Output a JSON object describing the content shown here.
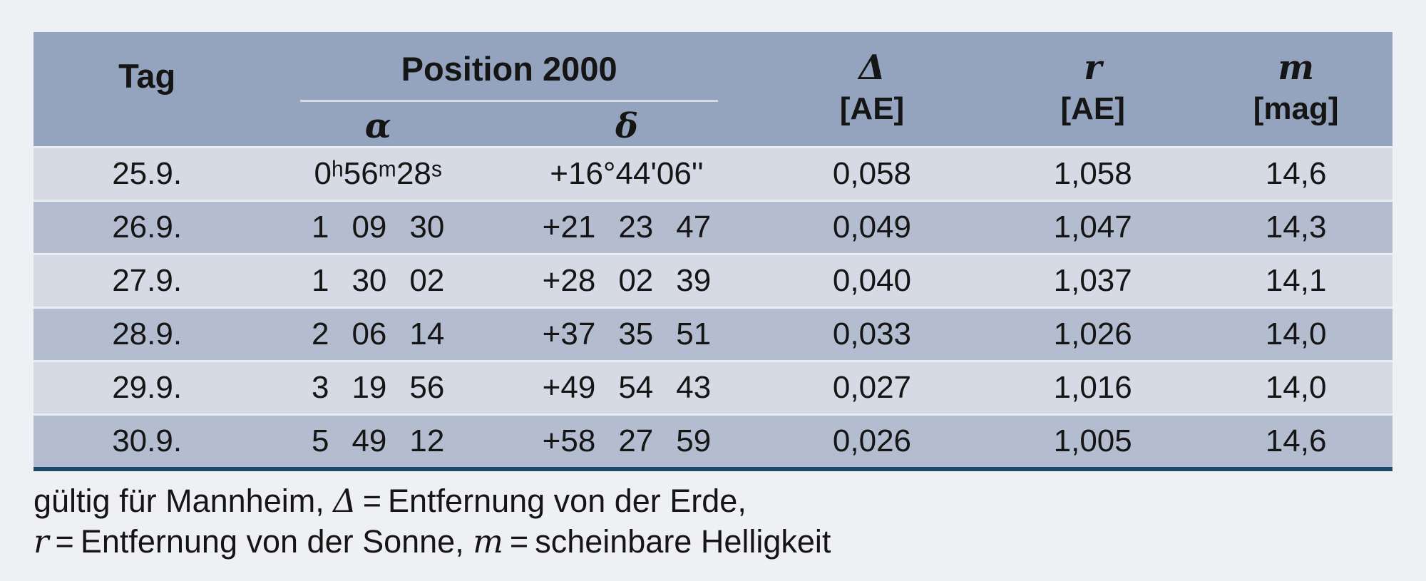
{
  "colors": {
    "page_background": "#eef0f4",
    "header_bg": "#95a4be",
    "row_light": "#d6dae5",
    "row_medium": "#b3bdcf",
    "row_separator": "#e9ecf2",
    "header_underline": "#d5dae3",
    "bottom_rule": "#1b4a69",
    "text": "#151515"
  },
  "table": {
    "header": {
      "tag": "Tag",
      "position_group": {
        "title": "Position 2000",
        "alpha": "α",
        "delta": "δ"
      },
      "col_dist_earth": {
        "symbol": "Δ",
        "unit": "[AE]"
      },
      "col_dist_sun": {
        "symbol": "r",
        "unit": "[AE]"
      },
      "col_magnitude": {
        "symbol": "m",
        "unit": "[mag]"
      }
    },
    "rows": [
      [
        "25.9.",
        "0ʰ56ᵐ28ˢ",
        "+16°44'06''",
        "0,058",
        "1,058",
        "14,6"
      ],
      [
        "26.9.",
        "1 09 30",
        "+21 23 47",
        "0,049",
        "1,047",
        "14,3"
      ],
      [
        "27.9.",
        "1 30 02",
        "+28 02 39",
        "0,040",
        "1,037",
        "14,1"
      ],
      [
        "28.9.",
        "2 06 14",
        "+37 35 51",
        "0,033",
        "1,026",
        "14,0"
      ],
      [
        "29.9.",
        "3 19 56",
        "+49 54 43",
        "0,027",
        "1,016",
        "14,0"
      ],
      [
        "30.9.",
        "5 49 12",
        "+58 27 59",
        "0,026",
        "1,005",
        "14,6"
      ]
    ]
  },
  "footer": {
    "l1_pre": "gültig für Mannheim, ",
    "l1_sym": "Δ",
    "l1_post": " = Entfernung von der Erde,",
    "l2_sym1": "r",
    "l2_mid": " = Entfernung von der Sonne, ",
    "l2_sym2": "m",
    "l2_post": " = scheinbare Helligkeit"
  }
}
